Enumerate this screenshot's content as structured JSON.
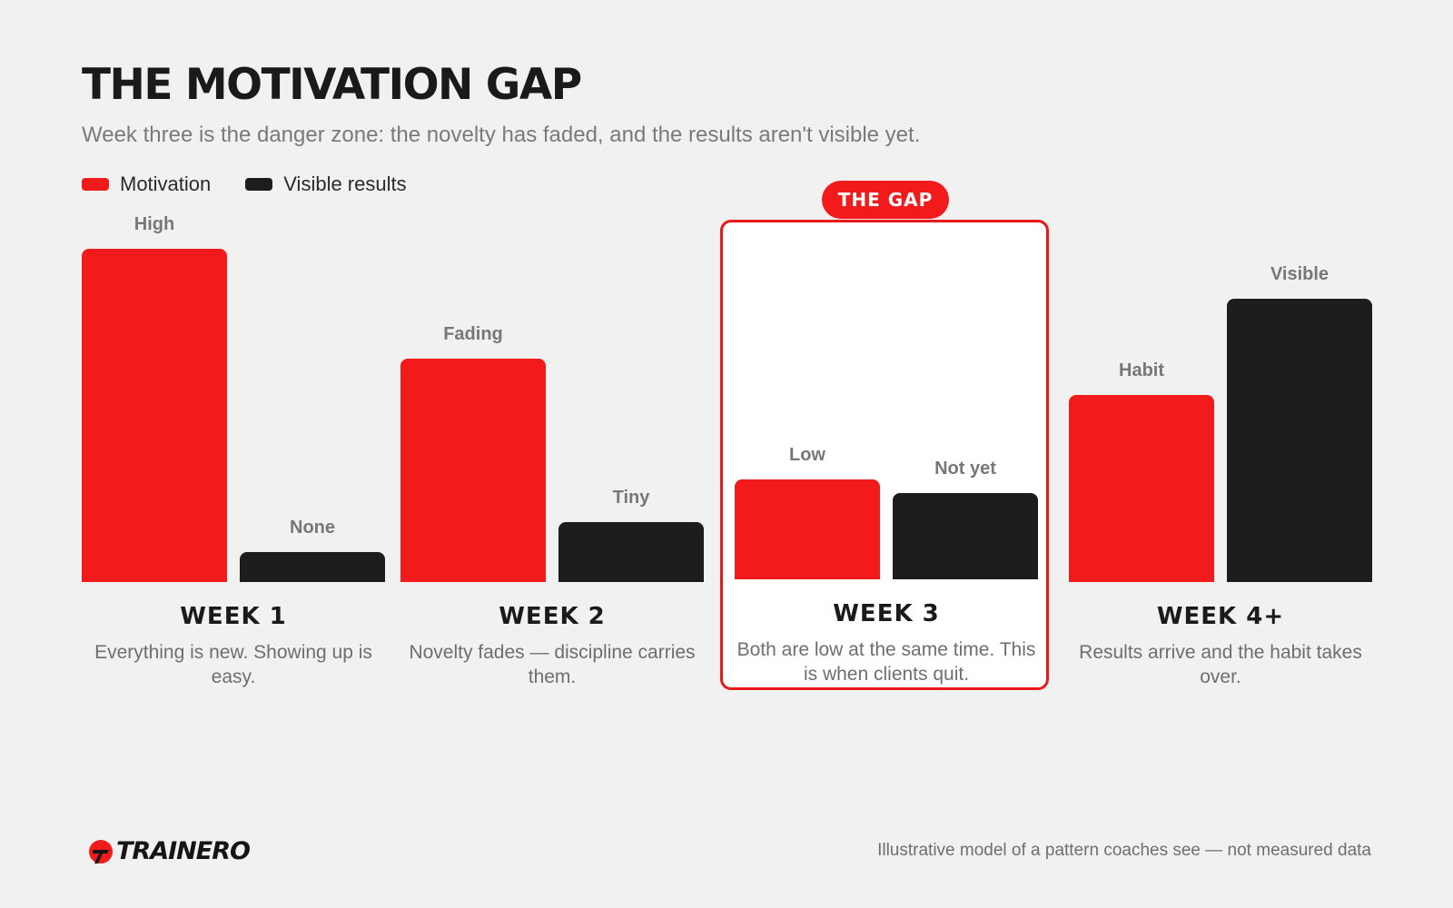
{
  "header": {
    "title": "THE MOTIVATION GAP",
    "subtitle": "Week three is the danger zone: the novelty has faded, and the results aren't visible yet."
  },
  "legend": [
    {
      "label": "Motivation",
      "color": "#f21a1a"
    },
    {
      "label": "Visible results",
      "color": "#1d1d1d"
    }
  ],
  "highlight": {
    "badge": "THE GAP",
    "week_index": 2,
    "border_color": "#e8191b"
  },
  "chart_data": {
    "type": "bar",
    "categories": [
      "WEEK 1",
      "WEEK 2",
      "WEEK 3",
      "WEEK 4+"
    ],
    "series": [
      {
        "name": "Motivation",
        "color": "#f21a1a",
        "values": [
          100,
          67,
          30,
          56
        ],
        "labels": [
          "High",
          "Fading",
          "Low",
          "Habit"
        ]
      },
      {
        "name": "Visible results",
        "color": "#1d1d1d",
        "values": [
          9,
          18,
          26,
          85
        ],
        "labels": [
          "None",
          "Tiny",
          "Not yet",
          "Visible"
        ]
      }
    ],
    "descriptions": [
      "Everything is new. Showing up is easy.",
      "Novelty fades — discipline carries them.",
      "Both are low at the same time. This is when clients quit.",
      "Results arrive and the habit takes over."
    ],
    "grid": false,
    "legend_position": "top-left"
  },
  "footer": {
    "brand": "TRAINERO",
    "brand_icon": "trainero-logo-icon",
    "note": "Illustrative model of a pattern coaches see — not measured data"
  }
}
